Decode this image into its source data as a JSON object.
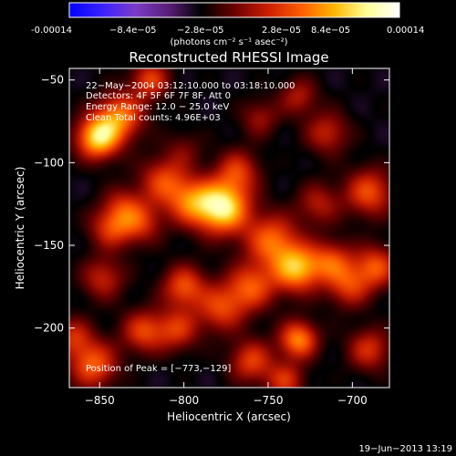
{
  "colorbar": {
    "ticks": [
      "-0.00014",
      "−8.4e−05",
      "−2.8e−05",
      "2.8e−05",
      "8.4e−05",
      "0.00014"
    ],
    "units": "(photons cm⁻² s⁻¹ asec⁻²)",
    "stops": [
      "#0000ff",
      "#3a22ff",
      "#7a3cc8",
      "#5a1e78",
      "#000000",
      "#6b0000",
      "#c81e00",
      "#ff5a00",
      "#ffb400",
      "#ffff96",
      "#ffffff"
    ]
  },
  "chart_data": {
    "type": "heatmap",
    "title": "Reconstructed RHESSI Image",
    "xlabel": "Heliocentric X (arcsec)",
    "ylabel": "Heliocentric Y (arcsec)",
    "xlim": [
      -868,
      -678
    ],
    "ylim": [
      -236,
      -43
    ],
    "x_ticks": [
      {
        "value": -850,
        "label": "−850"
      },
      {
        "value": -800,
        "label": "−800"
      },
      {
        "value": -750,
        "label": "−750"
      },
      {
        "value": -700,
        "label": "−700"
      }
    ],
    "y_ticks": [
      {
        "value": -50,
        "label": "−50"
      },
      {
        "value": -100,
        "label": "−100"
      },
      {
        "value": -150,
        "label": "−150"
      },
      {
        "value": -200,
        "label": "−200"
      }
    ],
    "annotations": [
      "22−May−2004 03:12:10.000 to 03:18:10.000",
      "Detectors: 4F 5F 6F 7F 8F, Att 0",
      "Energy Range: 12.0 − 25.0 keV",
      "Clean     Total counts: 4.96E+03"
    ],
    "peak_label": "Position of Peak = [−773,−129]",
    "peak": {
      "x": -773,
      "y": -129,
      "value": 0.00014
    },
    "blobs": [
      {
        "x": -777,
        "y": -127,
        "v": 1.0,
        "s": 11
      },
      {
        "x": -796,
        "y": -124,
        "v": 0.55,
        "s": 10
      },
      {
        "x": -812,
        "y": -111,
        "v": 0.5,
        "s": 10
      },
      {
        "x": -768,
        "y": -105,
        "v": 0.45,
        "s": 9
      },
      {
        "x": -851,
        "y": -85,
        "v": 0.9,
        "s": 9
      },
      {
        "x": -838,
        "y": -72,
        "v": 0.65,
        "s": 10
      },
      {
        "x": -820,
        "y": -50,
        "v": 0.5,
        "s": 8
      },
      {
        "x": -733,
        "y": -164,
        "v": 0.8,
        "s": 10
      },
      {
        "x": -748,
        "y": -147,
        "v": 0.6,
        "s": 11
      },
      {
        "x": -712,
        "y": -160,
        "v": 0.5,
        "s": 9
      },
      {
        "x": -702,
        "y": -175,
        "v": 0.45,
        "s": 9
      },
      {
        "x": -686,
        "y": -163,
        "v": 0.55,
        "s": 9
      },
      {
        "x": -843,
        "y": -139,
        "v": 0.5,
        "s": 9
      },
      {
        "x": -826,
        "y": -136,
        "v": 0.45,
        "s": 9
      },
      {
        "x": -760,
        "y": -175,
        "v": 0.55,
        "s": 10
      },
      {
        "x": -778,
        "y": -188,
        "v": 0.5,
        "s": 10
      },
      {
        "x": -732,
        "y": -207,
        "v": 0.7,
        "s": 8
      },
      {
        "x": -690,
        "y": -213,
        "v": 0.45,
        "s": 9
      },
      {
        "x": -854,
        "y": -222,
        "v": 0.6,
        "s": 10
      },
      {
        "x": -866,
        "y": -205,
        "v": 0.4,
        "s": 8
      },
      {
        "x": -824,
        "y": -202,
        "v": 0.5,
        "s": 9
      },
      {
        "x": -804,
        "y": -201,
        "v": 0.45,
        "s": 9
      },
      {
        "x": -800,
        "y": -175,
        "v": 0.55,
        "s": 9
      },
      {
        "x": -760,
        "y": -220,
        "v": 0.5,
        "s": 9
      },
      {
        "x": -740,
        "y": -232,
        "v": 0.45,
        "s": 8
      },
      {
        "x": -715,
        "y": -82,
        "v": 0.4,
        "s": 9
      },
      {
        "x": -690,
        "y": -118,
        "v": 0.55,
        "s": 10
      },
      {
        "x": -720,
        "y": -125,
        "v": 0.35,
        "s": 9
      },
      {
        "x": -836,
        "y": -125,
        "v": 0.3,
        "s": 8
      },
      {
        "x": -848,
        "y": -170,
        "v": 0.4,
        "s": 9
      },
      {
        "x": -732,
        "y": -60,
        "v": 0.35,
        "s": 8
      },
      {
        "x": -755,
        "y": -73,
        "v": 0.3,
        "s": 8
      },
      {
        "x": -800,
        "y": -92,
        "v": 0.2,
        "s": 8
      }
    ]
  },
  "footer": {
    "timestamp": "19−Jun−2013 13:19"
  }
}
